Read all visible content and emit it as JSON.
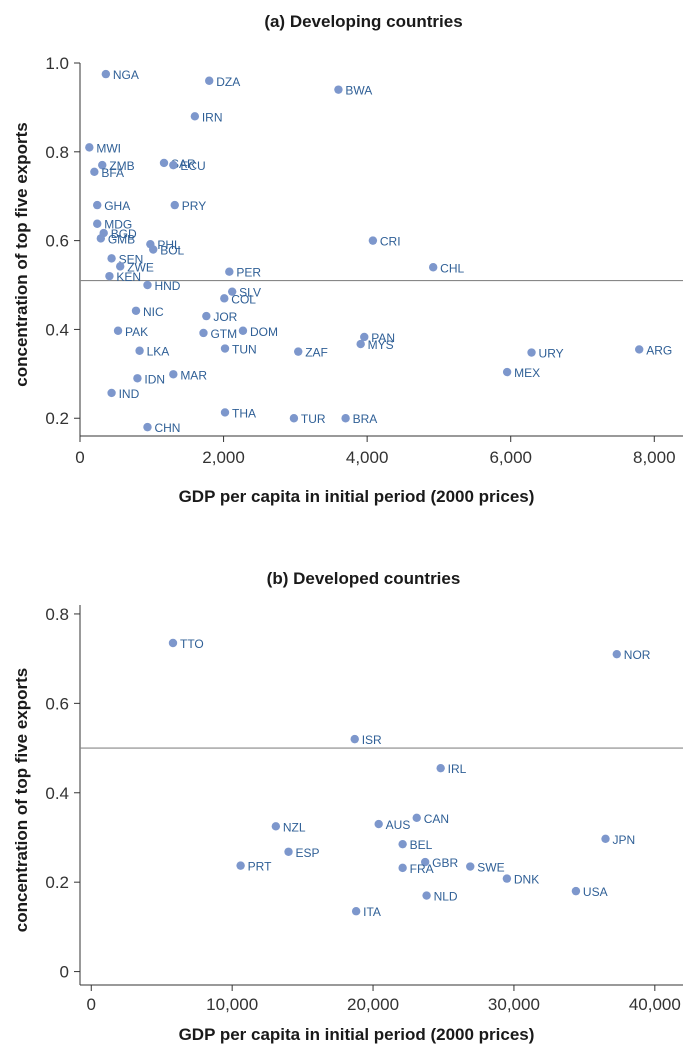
{
  "colors": {
    "point": "#7d97cc",
    "label": "#2f5f96",
    "axis": "#333333",
    "refline": "#888888"
  },
  "chart_data": [
    {
      "type": "scatter",
      "title": "(a) Developing countries",
      "xlabel": "GDP per capita in initial period (2000 prices)",
      "ylabel": "concentration of top five exports",
      "xlim": [
        0,
        8400
      ],
      "ylim": [
        0.16,
        1.0
      ],
      "xticks": [
        0,
        2000,
        4000,
        6000,
        8000
      ],
      "xtick_labels": [
        "0",
        "2,000",
        "4,000",
        "6,000",
        "8,000"
      ],
      "yticks": [
        0.2,
        0.4,
        0.6,
        0.8,
        1.0
      ],
      "ytick_labels": [
        "0.2",
        "0.4",
        "0.6",
        "0.8",
        "1.0"
      ],
      "reference_line": 0.51,
      "points": [
        {
          "label": "NGA",
          "x": 360,
          "y": 0.975
        },
        {
          "label": "DZA",
          "x": 1800,
          "y": 0.96
        },
        {
          "label": "BWA",
          "x": 3600,
          "y": 0.94
        },
        {
          "label": "IRN",
          "x": 1600,
          "y": 0.88
        },
        {
          "label": "MWI",
          "x": 130,
          "y": 0.81
        },
        {
          "label": "SAR",
          "x": 1170,
          "y": 0.775
        },
        {
          "label": "ZMB",
          "x": 310,
          "y": 0.77
        },
        {
          "label": "ECU",
          "x": 1300,
          "y": 0.77
        },
        {
          "label": "BFA",
          "x": 200,
          "y": 0.755
        },
        {
          "label": "GHA",
          "x": 240,
          "y": 0.68
        },
        {
          "label": "PRY",
          "x": 1320,
          "y": 0.68
        },
        {
          "label": "MDG",
          "x": 240,
          "y": 0.638
        },
        {
          "label": "BGD",
          "x": 330,
          "y": 0.617
        },
        {
          "label": "GMB",
          "x": 290,
          "y": 0.605
        },
        {
          "label": "PHL",
          "x": 980,
          "y": 0.592
        },
        {
          "label": "CRI",
          "x": 4080,
          "y": 0.6
        },
        {
          "label": "BOL",
          "x": 1020,
          "y": 0.58
        },
        {
          "label": "SEN",
          "x": 440,
          "y": 0.56
        },
        {
          "label": "ZWE",
          "x": 560,
          "y": 0.542
        },
        {
          "label": "CHL",
          "x": 4920,
          "y": 0.54
        },
        {
          "label": "PER",
          "x": 2080,
          "y": 0.53
        },
        {
          "label": "KEN",
          "x": 410,
          "y": 0.52
        },
        {
          "label": "HND",
          "x": 940,
          "y": 0.5
        },
        {
          "label": "SLV",
          "x": 2120,
          "y": 0.485
        },
        {
          "label": "COL",
          "x": 2010,
          "y": 0.47
        },
        {
          "label": "NIC",
          "x": 780,
          "y": 0.442
        },
        {
          "label": "JOR",
          "x": 1760,
          "y": 0.43
        },
        {
          "label": "PAK",
          "x": 530,
          "y": 0.397
        },
        {
          "label": "DOM",
          "x": 2270,
          "y": 0.397
        },
        {
          "label": "GTM",
          "x": 1720,
          "y": 0.392
        },
        {
          "label": "PAN",
          "x": 3960,
          "y": 0.383
        },
        {
          "label": "MYS",
          "x": 3910,
          "y": 0.367
        },
        {
          "label": "TUN",
          "x": 2020,
          "y": 0.357
        },
        {
          "label": "LKA",
          "x": 830,
          "y": 0.352
        },
        {
          "label": "ZAF",
          "x": 3040,
          "y": 0.35
        },
        {
          "label": "URY",
          "x": 6290,
          "y": 0.348
        },
        {
          "label": "ARG",
          "x": 7790,
          "y": 0.355
        },
        {
          "label": "MEX",
          "x": 5950,
          "y": 0.304
        },
        {
          "label": "MAR",
          "x": 1300,
          "y": 0.299
        },
        {
          "label": "IDN",
          "x": 800,
          "y": 0.29
        },
        {
          "label": "IND",
          "x": 440,
          "y": 0.257
        },
        {
          "label": "THA",
          "x": 2020,
          "y": 0.213
        },
        {
          "label": "TUR",
          "x": 2980,
          "y": 0.2
        },
        {
          "label": "BRA",
          "x": 3700,
          "y": 0.2
        },
        {
          "label": "CHN",
          "x": 940,
          "y": 0.18
        }
      ]
    },
    {
      "type": "scatter",
      "title": "(b) Developed countries",
      "xlabel": "GDP per capita in initial period (2000 prices)",
      "ylabel": "concentration of top five exports",
      "xlim": [
        -800,
        42000
      ],
      "ylim": [
        -0.03,
        0.82
      ],
      "xticks": [
        0,
        10000,
        20000,
        30000,
        40000
      ],
      "xtick_labels": [
        "0",
        "10,000",
        "20,000",
        "30,000",
        "40,000"
      ],
      "yticks": [
        0,
        0.2,
        0.4,
        0.6,
        0.8
      ],
      "ytick_labels": [
        "0",
        "0.2",
        "0.4",
        "0.6",
        "0.8"
      ],
      "reference_line": 0.5,
      "points": [
        {
          "label": "TTO",
          "x": 5800,
          "y": 0.735
        },
        {
          "label": "NOR",
          "x": 37300,
          "y": 0.71
        },
        {
          "label": "ISR",
          "x": 18700,
          "y": 0.52
        },
        {
          "label": "IRL",
          "x": 24800,
          "y": 0.455
        },
        {
          "label": "CAN",
          "x": 23100,
          "y": 0.344
        },
        {
          "label": "AUS",
          "x": 20400,
          "y": 0.33
        },
        {
          "label": "NZL",
          "x": 13100,
          "y": 0.325
        },
        {
          "label": "JPN",
          "x": 36500,
          "y": 0.297
        },
        {
          "label": "BEL",
          "x": 22100,
          "y": 0.285
        },
        {
          "label": "ESP",
          "x": 14000,
          "y": 0.268
        },
        {
          "label": "GBR",
          "x": 23700,
          "y": 0.245
        },
        {
          "label": "PRT",
          "x": 10600,
          "y": 0.237
        },
        {
          "label": "SWE",
          "x": 26900,
          "y": 0.235
        },
        {
          "label": "FRA",
          "x": 22100,
          "y": 0.232
        },
        {
          "label": "DNK",
          "x": 29500,
          "y": 0.208
        },
        {
          "label": "USA",
          "x": 34400,
          "y": 0.18
        },
        {
          "label": "NLD",
          "x": 23800,
          "y": 0.17
        },
        {
          "label": "ITA",
          "x": 18800,
          "y": 0.135
        }
      ]
    }
  ]
}
